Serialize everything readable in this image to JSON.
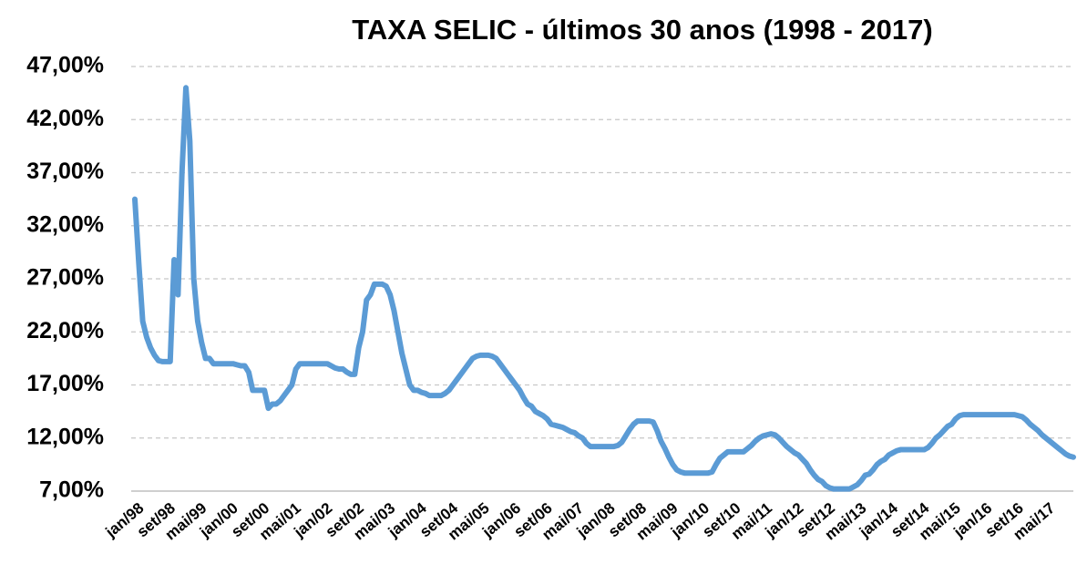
{
  "chart_data": {
    "type": "line",
    "title": "TAXA SELIC - últimos 30 anos (1998 - 2017)",
    "categories": [
      "jan/98",
      null,
      null,
      null,
      null,
      null,
      null,
      null,
      "set/98",
      null,
      null,
      null,
      null,
      null,
      null,
      null,
      "mai/99",
      null,
      null,
      null,
      null,
      null,
      null,
      null,
      "jan/00",
      null,
      null,
      null,
      null,
      null,
      null,
      null,
      "set/00",
      null,
      null,
      null,
      null,
      null,
      null,
      null,
      "mai/01",
      null,
      null,
      null,
      null,
      null,
      null,
      null,
      "jan/02",
      null,
      null,
      null,
      null,
      null,
      null,
      null,
      "set/02",
      null,
      null,
      null,
      null,
      null,
      null,
      null,
      "mai/03",
      null,
      null,
      null,
      null,
      null,
      null,
      null,
      "jan/04",
      null,
      null,
      null,
      null,
      null,
      null,
      null,
      "set/04",
      null,
      null,
      null,
      null,
      null,
      null,
      null,
      "mai/05",
      null,
      null,
      null,
      null,
      null,
      null,
      null,
      "jan/06",
      null,
      null,
      null,
      null,
      null,
      null,
      null,
      "set/06",
      null,
      null,
      null,
      null,
      null,
      null,
      null,
      "mai/07",
      null,
      null,
      null,
      null,
      null,
      null,
      null,
      "jan/08",
      null,
      null,
      null,
      null,
      null,
      null,
      null,
      "set/08",
      null,
      null,
      null,
      null,
      null,
      null,
      null,
      "mai/09",
      null,
      null,
      null,
      null,
      null,
      null,
      null,
      "jan/10",
      null,
      null,
      null,
      null,
      null,
      null,
      null,
      "set/10",
      null,
      null,
      null,
      null,
      null,
      null,
      null,
      "mai/11",
      null,
      null,
      null,
      null,
      null,
      null,
      null,
      "jan/12",
      null,
      null,
      null,
      null,
      null,
      null,
      null,
      "set/12",
      null,
      null,
      null,
      null,
      null,
      null,
      null,
      "mai/13",
      null,
      null,
      null,
      null,
      null,
      null,
      null,
      "jan/14",
      null,
      null,
      null,
      null,
      null,
      null,
      null,
      "set/14",
      null,
      null,
      null,
      null,
      null,
      null,
      null,
      "mai/15",
      null,
      null,
      null,
      null,
      null,
      null,
      null,
      "jan/16",
      null,
      null,
      null,
      null,
      null,
      null,
      null,
      "set/16",
      null,
      null,
      null,
      null,
      null,
      null,
      null,
      "mai/17",
      null,
      null,
      null,
      null,
      null,
      null,
      null
    ],
    "values": [
      34.5,
      28.5,
      23,
      21.5,
      20.5,
      19.8,
      19.3,
      19.2,
      19.2,
      19.2,
      28.8,
      25.5,
      37,
      45,
      40,
      27,
      23,
      21,
      19.5,
      19.5,
      19,
      19,
      19,
      19,
      19,
      19,
      18.9,
      18.8,
      18.8,
      18.2,
      16.5,
      16.5,
      16.5,
      16.5,
      14.8,
      15.2,
      15.2,
      15.5,
      16,
      16.5,
      17,
      18.5,
      19,
      19,
      19,
      19,
      19,
      19,
      19,
      19,
      18.8,
      18.6,
      18.5,
      18.5,
      18.2,
      18,
      18,
      20.5,
      22,
      25,
      25.5,
      26.5,
      26.5,
      26.5,
      26.3,
      25.5,
      24,
      22,
      20,
      18.5,
      17,
      16.5,
      16.5,
      16.3,
      16.2,
      16,
      16,
      16,
      16,
      16.2,
      16.5,
      17,
      17.5,
      18,
      18.5,
      19,
      19.5,
      19.7,
      19.8,
      19.8,
      19.8,
      19.7,
      19.5,
      19,
      18.5,
      18,
      17.5,
      17,
      16.5,
      15.8,
      15.2,
      15,
      14.5,
      14.3,
      14.1,
      13.8,
      13.3,
      13.2,
      13.1,
      13,
      12.8,
      12.6,
      12.5,
      12.2,
      12,
      11.5,
      11.2,
      11.2,
      11.2,
      11.2,
      11.2,
      11.2,
      11.2,
      11.3,
      11.6,
      12.2,
      12.8,
      13.3,
      13.6,
      13.6,
      13.6,
      13.6,
      13.5,
      12.7,
      11.7,
      11,
      10.2,
      9.5,
      9,
      8.8,
      8.7,
      8.7,
      8.7,
      8.7,
      8.7,
      8.7,
      8.7,
      8.8,
      9.5,
      10.1,
      10.4,
      10.7,
      10.7,
      10.7,
      10.7,
      10.7,
      11,
      11.3,
      11.7,
      12,
      12.2,
      12.3,
      12.4,
      12.3,
      12,
      11.6,
      11.2,
      10.9,
      10.6,
      10.4,
      10,
      9.6,
      9,
      8.5,
      8.1,
      7.9,
      7.5,
      7.3,
      7.2,
      7.2,
      7.2,
      7.2,
      7.2,
      7.4,
      7.6,
      8,
      8.5,
      8.6,
      9,
      9.5,
      9.8,
      10,
      10.4,
      10.6,
      10.8,
      10.9,
      10.9,
      10.9,
      10.9,
      10.9,
      10.9,
      10.9,
      11.1,
      11.5,
      12,
      12.3,
      12.7,
      13.1,
      13.3,
      13.8,
      14.1,
      14.2,
      14.2,
      14.2,
      14.2,
      14.2,
      14.2,
      14.2,
      14.2,
      14.2,
      14.2,
      14.2,
      14.2,
      14.2,
      14.2,
      14.1,
      14,
      13.7,
      13.3,
      13,
      12.7,
      12.3,
      12,
      11.7,
      11.4,
      11.1,
      10.8,
      10.5,
      10.3,
      10.2
    ],
    "color": "#5b9bd5",
    "ylim": [
      7,
      47
    ],
    "yticks": [
      {
        "value": 7,
        "label": "7,00%"
      },
      {
        "value": 12,
        "label": "12,00%"
      },
      {
        "value": 17,
        "label": "17,00%"
      },
      {
        "value": 22,
        "label": "22,00%"
      },
      {
        "value": 27,
        "label": "27,00%"
      },
      {
        "value": 32,
        "label": "32,00%"
      },
      {
        "value": 37,
        "label": "37,00%"
      },
      {
        "value": 42,
        "label": "42,00%"
      },
      {
        "value": 47,
        "label": "47,00%"
      }
    ],
    "grid": true
  }
}
